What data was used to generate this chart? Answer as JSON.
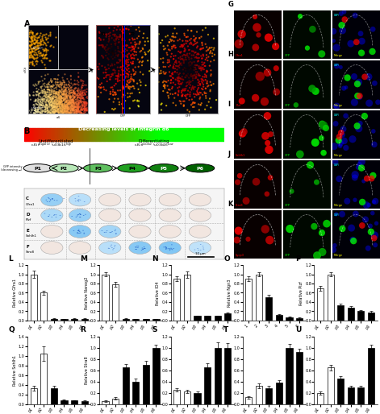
{
  "bar_charts": {
    "L": {
      "label": "L",
      "ylabel": "Relative Gfra1",
      "ylim": [
        0,
        1.2
      ],
      "yticks": [
        0.0,
        0.2,
        0.4,
        0.6,
        0.8,
        1.0,
        1.2
      ],
      "categories": [
        "p1",
        "p2",
        "p3",
        "p4",
        "p5",
        "p6"
      ],
      "values": [
        1.0,
        0.6,
        0.04,
        0.03,
        0.04,
        0.04
      ],
      "colors": [
        "white",
        "white",
        "black",
        "black",
        "black",
        "black"
      ],
      "errors": [
        0.08,
        0.05,
        0.01,
        0.01,
        0.01,
        0.01
      ]
    },
    "M": {
      "label": "M",
      "ylabel": "Relative Nanog2",
      "ylim": [
        0,
        1.2
      ],
      "yticks": [
        0.0,
        0.2,
        0.4,
        0.6,
        0.8,
        1.0,
        1.2
      ],
      "categories": [
        "p1",
        "p2",
        "p3",
        "p4",
        "p5",
        "p6"
      ],
      "values": [
        1.0,
        0.78,
        0.04,
        0.03,
        0.03,
        0.03
      ],
      "colors": [
        "white",
        "white",
        "black",
        "black",
        "black",
        "black"
      ],
      "errors": [
        0.04,
        0.05,
        0.01,
        0.005,
        0.005,
        0.005
      ]
    },
    "N": {
      "label": "N",
      "ylabel": "Relative ID4",
      "ylim": [
        0,
        1.2
      ],
      "yticks": [
        0.0,
        0.2,
        0.4,
        0.6,
        0.8,
        1.0,
        1.2
      ],
      "categories": [
        "p1",
        "p2",
        "p3",
        "p4",
        "p5",
        "p6"
      ],
      "values": [
        0.9,
        1.0,
        0.1,
        0.1,
        0.1,
        0.15
      ],
      "colors": [
        "white",
        "white",
        "black",
        "black",
        "black",
        "black"
      ],
      "errors": [
        0.05,
        0.07,
        0.01,
        0.01,
        0.01,
        0.02
      ]
    },
    "O": {
      "label": "O",
      "ylabel": "Relative Ngn3",
      "ylim": [
        0,
        1.2
      ],
      "yticks": [
        0.0,
        0.2,
        0.4,
        0.6,
        0.8,
        1.0,
        1.2
      ],
      "categories": [
        "1",
        "2",
        "3",
        "4",
        "5",
        "6"
      ],
      "values": [
        0.9,
        1.0,
        0.5,
        0.12,
        0.07,
        0.05
      ],
      "colors": [
        "white",
        "white",
        "black",
        "black",
        "black",
        "black"
      ],
      "errors": [
        0.05,
        0.04,
        0.05,
        0.02,
        0.01,
        0.01
      ]
    },
    "P": {
      "label": "P",
      "ylabel": "Relative Plzf",
      "ylim": [
        0,
        1.2
      ],
      "yticks": [
        0.0,
        0.2,
        0.4,
        0.6,
        0.8,
        1.0,
        1.2
      ],
      "categories": [
        "p1",
        "p2",
        "p3",
        "p4",
        "p5",
        "p6"
      ],
      "values": [
        0.7,
        1.0,
        0.33,
        0.28,
        0.2,
        0.18
      ],
      "colors": [
        "white",
        "white",
        "black",
        "black",
        "black",
        "black"
      ],
      "errors": [
        0.05,
        0.04,
        0.03,
        0.03,
        0.02,
        0.02
      ]
    },
    "Q": {
      "label": "Q",
      "ylabel": "Relative Sohlh1",
      "ylim": [
        0,
        1.4
      ],
      "yticks": [
        0.0,
        0.2,
        0.4,
        0.6,
        0.8,
        1.0,
        1.2,
        1.4
      ],
      "categories": [
        "p1",
        "p2",
        "p3",
        "p4",
        "p5",
        "p6"
      ],
      "values": [
        0.32,
        1.05,
        0.32,
        0.08,
        0.07,
        0.06
      ],
      "colors": [
        "white",
        "white",
        "black",
        "black",
        "black",
        "black"
      ],
      "errors": [
        0.05,
        0.15,
        0.05,
        0.01,
        0.01,
        0.01
      ]
    },
    "R": {
      "label": "R",
      "ylabel": "Relative Stra8",
      "ylim": [
        0,
        1.2
      ],
      "yticks": [
        0.0,
        0.2,
        0.4,
        0.6,
        0.8,
        1.0,
        1.2
      ],
      "categories": [
        "p1",
        "p2",
        "p3",
        "p4",
        "p5",
        "p6"
      ],
      "values": [
        0.05,
        0.1,
        0.65,
        0.4,
        0.7,
        1.0
      ],
      "colors": [
        "white",
        "white",
        "black",
        "black",
        "black",
        "black"
      ],
      "errors": [
        0.01,
        0.02,
        0.06,
        0.05,
        0.07,
        0.05
      ]
    },
    "S": {
      "label": "S",
      "ylabel": "Relative Spo11",
      "ylim": [
        0,
        1.2
      ],
      "yticks": [
        0.0,
        0.2,
        0.4,
        0.6,
        0.8,
        1.0,
        1.2
      ],
      "categories": [
        "p1",
        "p2",
        "p3",
        "p4",
        "p5",
        "p6"
      ],
      "values": [
        0.25,
        0.22,
        0.2,
        0.65,
        1.0,
        1.0
      ],
      "colors": [
        "white",
        "white",
        "black",
        "black",
        "black",
        "black"
      ],
      "errors": [
        0.03,
        0.03,
        0.03,
        0.07,
        0.1,
        0.08
      ]
    },
    "T": {
      "label": "T",
      "ylabel": "Relative Dmc1",
      "ylim": [
        0,
        1.2
      ],
      "yticks": [
        0.0,
        0.2,
        0.4,
        0.6,
        0.8,
        1.0,
        1.2
      ],
      "categories": [
        "p1",
        "p2",
        "p3",
        "p4",
        "p5",
        "p6"
      ],
      "values": [
        0.12,
        0.32,
        0.28,
        0.38,
        1.0,
        0.92
      ],
      "colors": [
        "white",
        "white",
        "black",
        "black",
        "black",
        "black"
      ],
      "errors": [
        0.02,
        0.04,
        0.04,
        0.05,
        0.07,
        0.06
      ]
    },
    "U": {
      "label": "U",
      "ylabel": "Relative Sycp3",
      "ylim": [
        0,
        1.2
      ],
      "yticks": [
        0.0,
        0.2,
        0.4,
        0.6,
        0.8,
        1.0,
        1.2
      ],
      "categories": [
        "p1",
        "p2",
        "p3",
        "p4",
        "p5",
        "p6"
      ],
      "values": [
        0.2,
        0.65,
        0.45,
        0.3,
        0.3,
        1.0
      ],
      "colors": [
        "white",
        "white",
        "black",
        "black",
        "black",
        "black"
      ],
      "errors": [
        0.03,
        0.05,
        0.04,
        0.03,
        0.03,
        0.05
      ]
    }
  },
  "background_color": "#ffffff"
}
